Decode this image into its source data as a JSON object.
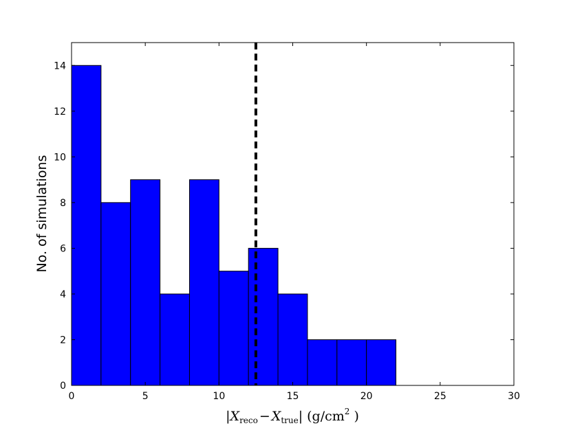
{
  "chart_data": {
    "type": "bar",
    "histogram": true,
    "bin_edges": [
      0,
      2,
      4,
      6,
      8,
      10,
      12,
      14,
      16,
      18,
      20,
      22
    ],
    "values": [
      14,
      8,
      9,
      4,
      9,
      5,
      6,
      4,
      2,
      2,
      2
    ],
    "bar_color": "#0000ff",
    "edge_color": "#000000",
    "xlim": [
      0,
      30
    ],
    "ylim": [
      0,
      15
    ],
    "xticks": [
      0,
      5,
      10,
      15,
      20,
      25,
      30
    ],
    "yticks": [
      0,
      2,
      4,
      6,
      8,
      10,
      12,
      14
    ],
    "ylabel": "No. of simulations",
    "xlabel": {
      "open_bar": "|",
      "sym1": "X",
      "sub1": "reco",
      "minus": "−",
      "sym2": "X",
      "sub2": "true",
      "close": "| (g/cm",
      "sup": "2",
      "tail": " )"
    },
    "reference_line": {
      "x": 12.5,
      "style": "dashed",
      "color": "#000000"
    },
    "grid": false
  }
}
